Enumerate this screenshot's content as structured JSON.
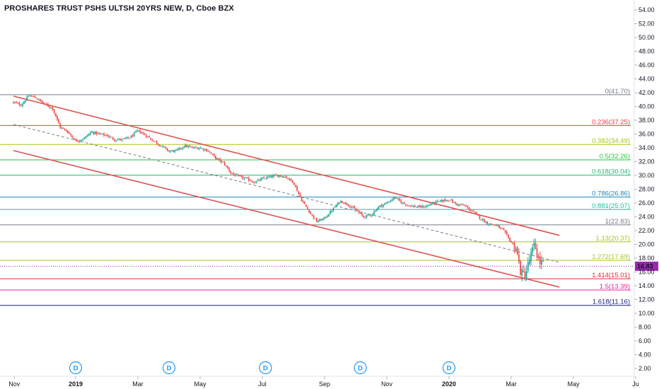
{
  "header": {
    "title": "PROSHARES TRUST PSHS ULTSH 20YRS NEW, D, Cboe BZX"
  },
  "chart_data": {
    "type": "candlestick",
    "symbol": "PROSHARES TRUST PSHS ULTSH 20YRS NEW",
    "interval": "D",
    "exchange": "Cboe BZX",
    "y_range": [
      0.5,
      55.0
    ],
    "y_ticks": [
      "54.00",
      "52.00",
      "50.00",
      "48.00",
      "46.00",
      "44.00",
      "42.00",
      "40.00",
      "38.00",
      "36.00",
      "34.00",
      "32.00",
      "30.00",
      "28.00",
      "26.00",
      "24.00",
      "22.00",
      "20.00",
      "18.00",
      "16.00",
      "14.00",
      "12.00",
      "10.00",
      "8.00",
      "6.00",
      "4.00",
      "2.00"
    ],
    "x_ticks": [
      {
        "label": "Nov",
        "t": 0.03
      },
      {
        "label": "2019",
        "t": 2.0
      },
      {
        "label": "Mar",
        "t": 4.0
      },
      {
        "label": "May",
        "t": 6.0
      },
      {
        "label": "Jul",
        "t": 8.0
      },
      {
        "label": "Sep",
        "t": 10.0
      },
      {
        "label": "Nov",
        "t": 12.0
      },
      {
        "label": "2020",
        "t": 14.0
      },
      {
        "label": "Mar",
        "t": 16.0
      },
      {
        "label": "May",
        "t": 18.0
      },
      {
        "label": "Ju",
        "t": 20.0
      }
    ],
    "last_price": {
      "label": "16.83",
      "value": 16.83,
      "color": "#9c27b0"
    },
    "fib_levels": [
      {
        "ratio": "0",
        "price": "41.70",
        "label": "0(41.70)",
        "value": 41.7,
        "color": "#787b86"
      },
      {
        "ratio": "0.236",
        "price": "37.25",
        "label": "0.236(37.25)",
        "value": 37.25,
        "color": "#f23645"
      },
      {
        "ratio": "0.382",
        "price": "34.49",
        "label": "0.382(34.49)",
        "value": 34.49,
        "color": "#a8c41b"
      },
      {
        "ratio": "0.5",
        "price": "32.26",
        "label": "0.5(32.26)",
        "value": 32.26,
        "color": "#26c63f"
      },
      {
        "ratio": "0.618",
        "price": "30.04",
        "label": "0.618(30.04)",
        "value": 30.04,
        "color": "#22b573"
      },
      {
        "ratio": "0.786",
        "price": "26.86",
        "label": "0.786(26.86)",
        "value": 26.86,
        "color": "#1e88b5"
      },
      {
        "ratio": "0.881",
        "price": "25.07",
        "label": "0.881(25.07)",
        "value": 25.07,
        "color": "#1ebc9c"
      },
      {
        "ratio": "1",
        "price": "22.83",
        "label": "1(22.83)",
        "value": 22.83,
        "color": "#787b86"
      },
      {
        "ratio": "1.13",
        "price": "20.37",
        "label": "1.13(20.37)",
        "value": 20.37,
        "color": "#a8c41b"
      },
      {
        "ratio": "1.272",
        "price": "17.69",
        "label": "1.272(17.69)",
        "value": 17.69,
        "color": "#a8c41b"
      },
      {
        "ratio": "1.414",
        "price": "15.01",
        "label": "1.414(15.01)",
        "value": 15.01,
        "color": "#d32f2f"
      },
      {
        "ratio": "1.5",
        "price": "13.39",
        "label": "1.5(13.39)",
        "value": 13.39,
        "color": "#e91e9c"
      },
      {
        "ratio": "1.618",
        "price": "11.16",
        "label": "1.618(11.16)",
        "value": 11.16,
        "color": "#1a237e"
      }
    ],
    "channel": {
      "color": "#e05050",
      "upper": [
        [
          0.0,
          41.5
        ],
        [
          17.55,
          21.3
        ]
      ],
      "lower": [
        [
          0.0,
          33.6
        ],
        [
          17.55,
          13.8
        ]
      ],
      "mid_dashed": [
        [
          0.0,
          37.4
        ],
        [
          17.55,
          17.4
        ]
      ]
    },
    "dividend_markers": [
      {
        "label": "D",
        "t": 2.0
      },
      {
        "label": "D",
        "t": 5.0
      },
      {
        "label": "D",
        "t": 8.1
      },
      {
        "label": "D",
        "t": 11.15
      },
      {
        "label": "D",
        "t": 14.0
      }
    ],
    "series": [
      {
        "name": "price_path",
        "points": [
          [
            0.0,
            40.6
          ],
          [
            0.25,
            40.2
          ],
          [
            0.5,
            41.6
          ],
          [
            0.75,
            41.2
          ],
          [
            1.0,
            40.3
          ],
          [
            1.25,
            39.8
          ],
          [
            1.5,
            37.0
          ],
          [
            1.75,
            36.3
          ],
          [
            2.0,
            35.0
          ],
          [
            2.25,
            35.3
          ],
          [
            2.5,
            36.3
          ],
          [
            2.75,
            36.0
          ],
          [
            3.0,
            35.8
          ],
          [
            3.25,
            35.2
          ],
          [
            3.5,
            35.2
          ],
          [
            3.75,
            35.5
          ],
          [
            4.0,
            36.5
          ],
          [
            4.25,
            35.8
          ],
          [
            4.5,
            35.0
          ],
          [
            4.75,
            34.3
          ],
          [
            5.0,
            33.5
          ],
          [
            5.25,
            33.6
          ],
          [
            5.5,
            34.3
          ],
          [
            5.75,
            34.0
          ],
          [
            6.0,
            34.0
          ],
          [
            6.25,
            33.6
          ],
          [
            6.5,
            32.5
          ],
          [
            6.75,
            31.8
          ],
          [
            7.0,
            30.3
          ],
          [
            7.25,
            29.8
          ],
          [
            7.5,
            29.5
          ],
          [
            7.75,
            29.0
          ],
          [
            8.0,
            29.5
          ],
          [
            8.25,
            29.8
          ],
          [
            8.5,
            30.0
          ],
          [
            8.75,
            29.8
          ],
          [
            9.0,
            29.0
          ],
          [
            9.25,
            26.5
          ],
          [
            9.5,
            24.8
          ],
          [
            9.75,
            23.3
          ],
          [
            10.0,
            23.8
          ],
          [
            10.25,
            25.0
          ],
          [
            10.5,
            26.3
          ],
          [
            10.75,
            25.8
          ],
          [
            11.0,
            25.0
          ],
          [
            11.25,
            24.0
          ],
          [
            11.5,
            24.3
          ],
          [
            11.75,
            25.5
          ],
          [
            12.0,
            26.0
          ],
          [
            12.25,
            26.8
          ],
          [
            12.5,
            26.0
          ],
          [
            12.75,
            25.6
          ],
          [
            13.0,
            25.4
          ],
          [
            13.25,
            25.5
          ],
          [
            13.5,
            26.0
          ],
          [
            13.75,
            26.3
          ],
          [
            14.0,
            26.5
          ],
          [
            14.25,
            25.8
          ],
          [
            14.5,
            25.6
          ],
          [
            14.75,
            24.8
          ],
          [
            15.0,
            23.8
          ],
          [
            15.25,
            23.0
          ],
          [
            15.5,
            22.8
          ],
          [
            15.75,
            22.0
          ],
          [
            16.0,
            20.3
          ],
          [
            16.15,
            19.5
          ],
          [
            16.3,
            16.0
          ],
          [
            16.45,
            15.5
          ],
          [
            16.6,
            18.0
          ],
          [
            16.75,
            20.0
          ],
          [
            16.9,
            17.4
          ],
          [
            17.05,
            17.2
          ]
        ]
      }
    ]
  }
}
